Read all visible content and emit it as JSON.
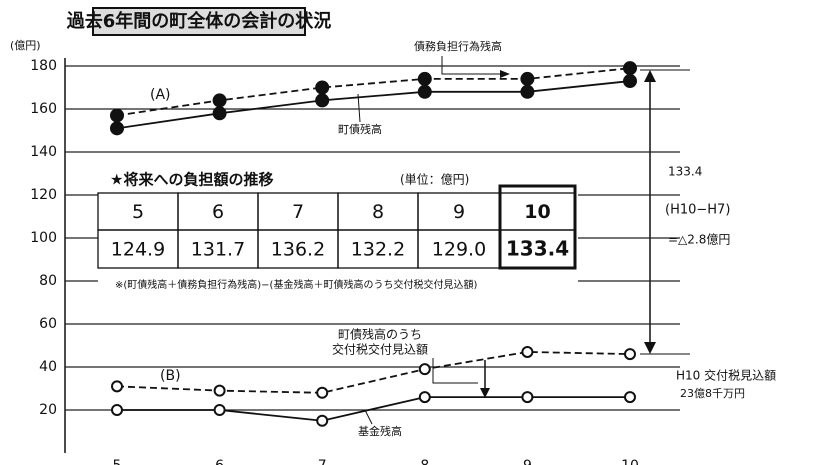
{
  "chart_data": {
    "type": "line",
    "title": "過去6年間の町全体の会計の状況",
    "ylabel": "(億円)",
    "categories": [
      "5",
      "6",
      "7",
      "8",
      "9",
      "10"
    ],
    "ylim": [
      0,
      180
    ],
    "yticks": [
      20,
      40,
      60,
      80,
      100,
      120,
      140,
      160,
      180
    ],
    "grid": true,
    "series": [
      {
        "name": "債務負担行為残高",
        "color": "#111111",
        "dashed": true,
        "marker": "filled",
        "values": [
          157,
          164,
          170,
          174,
          174,
          179
        ]
      },
      {
        "name": "町債残高",
        "color": "#111111",
        "dashed": false,
        "marker": "filled",
        "values": [
          151,
          158,
          164,
          168,
          168,
          173
        ]
      },
      {
        "color": "#111111",
        "dashed": true,
        "marker": "open",
        "values": [
          31,
          29,
          28,
          39,
          47,
          46
        ]
      },
      {
        "name": "基金残高",
        "color": "#111111",
        "dashed": false,
        "marker": "open",
        "values": [
          20,
          20,
          15,
          26,
          26,
          26
        ]
      }
    ],
    "annotations": [
      "(A)",
      "(B)",
      "町債残高のうち",
      "交付税交付見込額",
      "133.4",
      "(H10−H7)",
      "=△2.8億円",
      "H10 交付税見込額",
      "23億8千万円"
    ],
    "table": {
      "title": "★将来への負担額の推移",
      "unit": "(単位：億円)",
      "headers": [
        "5",
        "6",
        "7",
        "8",
        "9",
        "10"
      ],
      "values": [
        "124.9",
        "131.7",
        "136.2",
        "132.2",
        "129.0",
        "133.4"
      ],
      "note": "※(町債残高＋債務負担行為残高)−(基金残高＋町債残高のうち交付税交付見込額)"
    }
  }
}
